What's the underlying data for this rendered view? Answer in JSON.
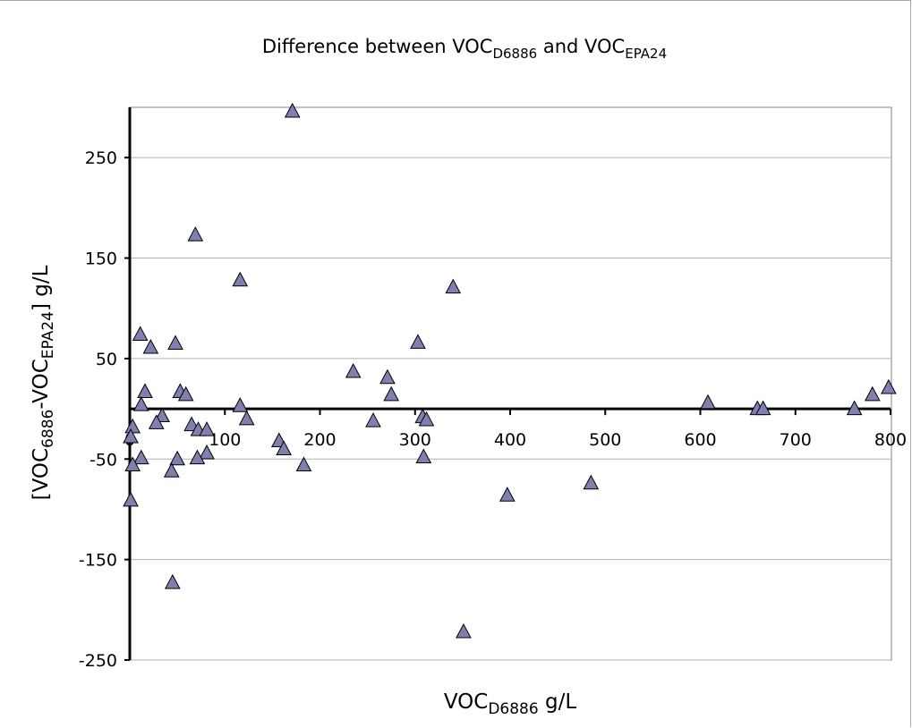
{
  "chart_data": {
    "type": "scatter",
    "title": {
      "parts": [
        {
          "text": "Difference between VOC",
          "sub": false
        },
        {
          "text": "D6886",
          "sub": true
        },
        {
          "text": " and VOC",
          "sub": false
        },
        {
          "text": "EPA24",
          "sub": true
        }
      ]
    },
    "xlabel": {
      "parts": [
        {
          "text": "VOC",
          "sub": false
        },
        {
          "text": "D6886",
          "sub": true
        },
        {
          "text": " g/L",
          "sub": false
        }
      ]
    },
    "ylabel": {
      "parts": [
        {
          "text": "[VOC",
          "sub": false
        },
        {
          "text": "6886",
          "sub": true
        },
        {
          "text": "-VOC",
          "sub": false
        },
        {
          "text": "EPA24",
          "sub": true
        },
        {
          "text": "] g/L",
          "sub": false
        }
      ]
    },
    "xlim": [
      0,
      800
    ],
    "ylim": [
      -250,
      300
    ],
    "xticks": [
      0,
      100,
      200,
      300,
      400,
      500,
      600,
      700,
      800
    ],
    "xtick_labels": [
      "0",
      "100",
      "200",
      "300",
      "400",
      "500",
      "600",
      "700",
      "800"
    ],
    "yticks": [
      250,
      150,
      50,
      -50,
      -150,
      -250
    ],
    "ytick_labels": [
      "250",
      "150",
      "50",
      "-50",
      "-150",
      "-250"
    ],
    "grid": "horizontal",
    "legend": "none",
    "marker": "triangle",
    "marker_color": "#8080b0",
    "points": [
      {
        "x": 171,
        "y": 296
      },
      {
        "x": 69,
        "y": 173
      },
      {
        "x": 116,
        "y": 128
      },
      {
        "x": 340,
        "y": 121
      },
      {
        "x": 11,
        "y": 74
      },
      {
        "x": 22,
        "y": 61
      },
      {
        "x": 48,
        "y": 65
      },
      {
        "x": 303,
        "y": 66
      },
      {
        "x": 235,
        "y": 37
      },
      {
        "x": 271,
        "y": 31
      },
      {
        "x": 16,
        "y": 17
      },
      {
        "x": 53,
        "y": 17
      },
      {
        "x": 59,
        "y": 14
      },
      {
        "x": 275,
        "y": 14
      },
      {
        "x": 798,
        "y": 21
      },
      {
        "x": 781,
        "y": 14
      },
      {
        "x": 608,
        "y": 6
      },
      {
        "x": 12,
        "y": 4
      },
      {
        "x": 116,
        "y": 3
      },
      {
        "x": 660,
        "y": 0
      },
      {
        "x": 666,
        "y": 0
      },
      {
        "x": 762,
        "y": 0
      },
      {
        "x": 34,
        "y": -7
      },
      {
        "x": 28,
        "y": -14
      },
      {
        "x": 123,
        "y": -10
      },
      {
        "x": 256,
        "y": -12
      },
      {
        "x": 308,
        "y": -8
      },
      {
        "x": 312,
        "y": -11
      },
      {
        "x": 3,
        "y": -18
      },
      {
        "x": 65,
        "y": -16
      },
      {
        "x": 72,
        "y": -21
      },
      {
        "x": 81,
        "y": -21
      },
      {
        "x": 1,
        "y": -28
      },
      {
        "x": 157,
        "y": -32
      },
      {
        "x": 162,
        "y": -40
      },
      {
        "x": 81,
        "y": -44
      },
      {
        "x": 12,
        "y": -49
      },
      {
        "x": 50,
        "y": -50
      },
      {
        "x": 71,
        "y": -49
      },
      {
        "x": 309,
        "y": -48
      },
      {
        "x": 3,
        "y": -56
      },
      {
        "x": 183,
        "y": -56
      },
      {
        "x": 44,
        "y": -62
      },
      {
        "x": 485,
        "y": -74
      },
      {
        "x": 397,
        "y": -86
      },
      {
        "x": 1,
        "y": -91
      },
      {
        "x": 45,
        "y": -173
      },
      {
        "x": 351,
        "y": -222
      }
    ]
  }
}
